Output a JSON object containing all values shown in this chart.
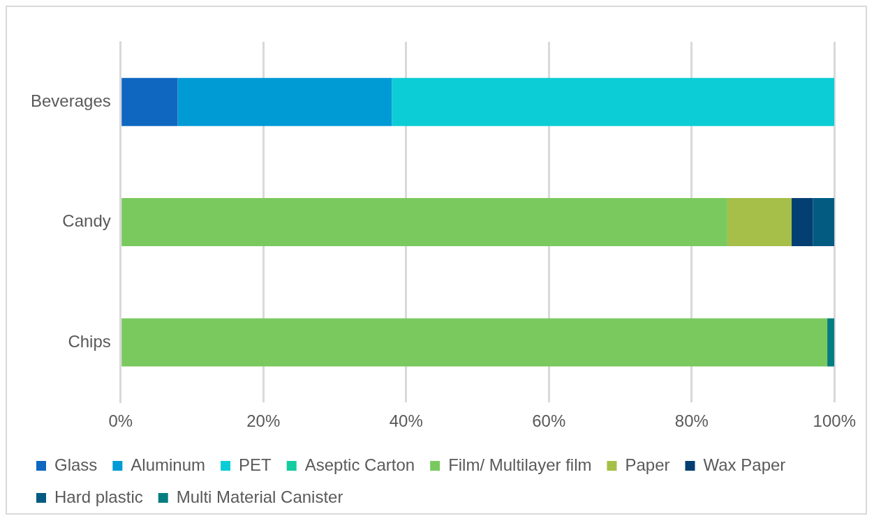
{
  "chart_data": {
    "type": "bar",
    "orientation": "horizontal",
    "stacked": true,
    "categories": [
      "Beverages",
      "Candy",
      "Chips"
    ],
    "series": [
      {
        "name": "Glass",
        "color": "#0f67c0",
        "values": [
          8,
          0,
          0
        ]
      },
      {
        "name": "Aluminum",
        "color": "#009ad5",
        "values": [
          30,
          0,
          0
        ]
      },
      {
        "name": "PET",
        "color": "#0ccdd6",
        "values": [
          62,
          0,
          0
        ]
      },
      {
        "name": "Aseptic Carton",
        "color": "#13cca0",
        "values": [
          0,
          0,
          0
        ]
      },
      {
        "name": "Film/ Multilayer film",
        "color": "#7ac95f",
        "values": [
          0,
          85,
          99
        ]
      },
      {
        "name": "Paper",
        "color": "#a5bf48",
        "values": [
          0,
          9,
          0
        ]
      },
      {
        "name": "Wax Paper",
        "color": "#033f72",
        "values": [
          0,
          3,
          0
        ]
      },
      {
        "name": "Hard plastic",
        "color": "#035b82",
        "values": [
          0,
          3,
          0
        ]
      },
      {
        "name": "Multi Material Canister",
        "color": "#037d80",
        "values": [
          0,
          0,
          1
        ]
      }
    ],
    "xlim": [
      0,
      100
    ],
    "xticks": [
      {
        "value": 0,
        "label": "0%"
      },
      {
        "value": 20,
        "label": "20%"
      },
      {
        "value": 40,
        "label": "40%"
      },
      {
        "value": 60,
        "label": "60%"
      },
      {
        "value": 80,
        "label": "80%"
      },
      {
        "value": 100,
        "label": "100%"
      }
    ],
    "grid": "x",
    "legend": "bottom"
  }
}
